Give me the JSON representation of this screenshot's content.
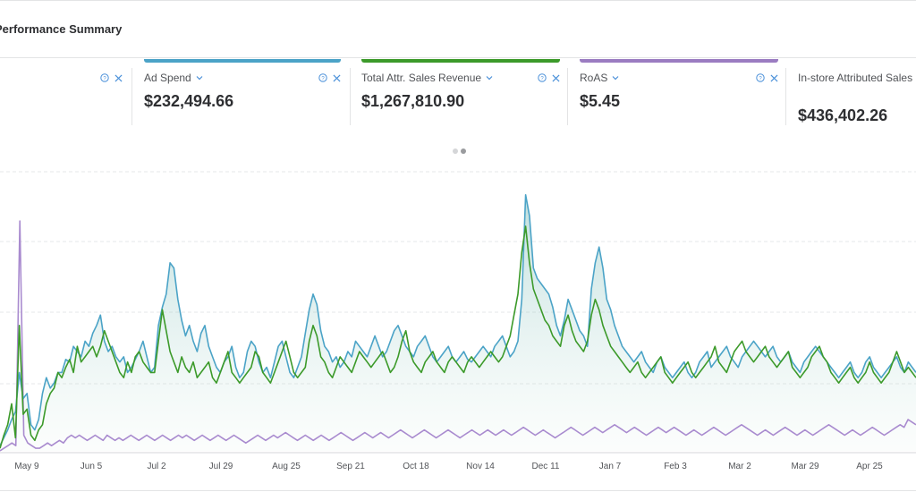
{
  "header": {
    "title": "Performance Summary"
  },
  "cards": [
    {
      "label": "Ad Spend",
      "value": "$232,494.66",
      "color": "#4ba3c7"
    },
    {
      "label": "Total Attr. Sales Revenue",
      "value": "$1,267,810.90",
      "color": "#3c9a2a"
    },
    {
      "label": "RoAS",
      "value": "$5.45",
      "color": "#9b7cc1"
    },
    {
      "label": "In-store Attributed Sales (Beta)",
      "value": "$436,402.26"
    }
  ],
  "pager": {
    "count": 2,
    "active": 1
  },
  "chart_data": {
    "type": "line",
    "x_ticks": [
      "May 9",
      "Jun 5",
      "Jul 2",
      "Jul 29",
      "Aug 25",
      "Sep 21",
      "Oct 18",
      "Nov 14",
      "Dec 11",
      "Jan 7",
      "Feb 3",
      "Mar 2",
      "Mar 29",
      "Apr 25"
    ],
    "grid": true,
    "legend": "none",
    "colors": {
      "blue": "#4ba3c7",
      "green": "#3c9a2a",
      "purple": "#a98bcf",
      "fill": "#e6f3ec"
    },
    "series": [
      {
        "color_key": "blue",
        "values": [
          2,
          5,
          8,
          12,
          15,
          30,
          20,
          22,
          10,
          8,
          12,
          22,
          28,
          24,
          26,
          30,
          30,
          35,
          34,
          40,
          38,
          36,
          42,
          40,
          45,
          48,
          52,
          42,
          38,
          40,
          36,
          34,
          36,
          30,
          32,
          35,
          38,
          42,
          36,
          30,
          32,
          48,
          55,
          60,
          72,
          70,
          58,
          50,
          44,
          48,
          42,
          38,
          45,
          48,
          40,
          36,
          32,
          30,
          34,
          36,
          40,
          32,
          28,
          30,
          38,
          42,
          40,
          34,
          30,
          32,
          28,
          34,
          40,
          42,
          36,
          30,
          28,
          32,
          36,
          45,
          54,
          60,
          56,
          46,
          40,
          38,
          34,
          36,
          32,
          34,
          38,
          36,
          42,
          40,
          38,
          36,
          40,
          44,
          40,
          36,
          38,
          42,
          46,
          48,
          44,
          40,
          38,
          36,
          40,
          42,
          44,
          40,
          36,
          34,
          36,
          38,
          40,
          36,
          34,
          36,
          38,
          35,
          34,
          36,
          38,
          40,
          38,
          36,
          40,
          42,
          44,
          40,
          36,
          38,
          42,
          58,
          98,
          90,
          70,
          66,
          64,
          62,
          60,
          55,
          48,
          44,
          50,
          58,
          54,
          50,
          46,
          44,
          40,
          62,
          72,
          78,
          70,
          58,
          54,
          48,
          44,
          40,
          38,
          36,
          34,
          36,
          38,
          34,
          32,
          30,
          34,
          36,
          32,
          30,
          28,
          30,
          32,
          34,
          30,
          28,
          30,
          34,
          36,
          38,
          32,
          34,
          36,
          38,
          40,
          36,
          34,
          32,
          36,
          38,
          40,
          42,
          40,
          38,
          36,
          38,
          40,
          36,
          34,
          36,
          38,
          34,
          32,
          30,
          34,
          36,
          38,
          40,
          38,
          36,
          34,
          32,
          30,
          28,
          30,
          32,
          34,
          30,
          28,
          30,
          34,
          36,
          32,
          30,
          28,
          30,
          32,
          34,
          36,
          32,
          30,
          34,
          32,
          30
        ]
      },
      {
        "color_key": "green",
        "values": [
          1,
          6,
          10,
          18,
          5,
          48,
          14,
          16,
          6,
          4,
          8,
          10,
          18,
          22,
          24,
          30,
          28,
          32,
          35,
          30,
          40,
          34,
          36,
          38,
          40,
          36,
          40,
          46,
          42,
          38,
          34,
          30,
          28,
          34,
          30,
          36,
          38,
          34,
          32,
          30,
          30,
          42,
          54,
          46,
          38,
          34,
          30,
          36,
          32,
          30,
          34,
          28,
          30,
          32,
          34,
          28,
          26,
          30,
          34,
          38,
          30,
          28,
          26,
          28,
          30,
          32,
          38,
          36,
          30,
          28,
          26,
          30,
          34,
          38,
          42,
          36,
          30,
          28,
          30,
          32,
          42,
          48,
          44,
          36,
          34,
          30,
          28,
          32,
          36,
          34,
          32,
          30,
          34,
          38,
          36,
          34,
          32,
          34,
          36,
          38,
          34,
          30,
          32,
          36,
          42,
          46,
          38,
          34,
          32,
          30,
          34,
          36,
          38,
          34,
          32,
          30,
          34,
          36,
          34,
          32,
          30,
          34,
          36,
          34,
          32,
          34,
          36,
          38,
          36,
          34,
          36,
          40,
          44,
          52,
          60,
          76,
          86,
          72,
          62,
          58,
          54,
          50,
          48,
          44,
          42,
          40,
          48,
          52,
          46,
          42,
          40,
          38,
          42,
          52,
          58,
          54,
          48,
          44,
          40,
          38,
          36,
          34,
          32,
          30,
          32,
          34,
          30,
          28,
          30,
          32,
          34,
          36,
          30,
          28,
          26,
          28,
          30,
          32,
          34,
          30,
          28,
          30,
          32,
          34,
          36,
          40,
          34,
          32,
          30,
          34,
          38,
          40,
          42,
          38,
          36,
          34,
          36,
          38,
          40,
          36,
          34,
          32,
          34,
          36,
          38,
          32,
          30,
          28,
          30,
          32,
          36,
          38,
          40,
          36,
          34,
          30,
          28,
          26,
          28,
          30,
          32,
          28,
          26,
          28,
          30,
          34,
          30,
          28,
          26,
          28,
          30,
          34,
          38,
          34,
          30,
          32,
          30,
          28
        ]
      },
      {
        "color_key": "purple",
        "values": [
          0,
          1,
          2,
          3,
          2,
          88,
          6,
          3,
          2,
          1,
          1,
          2,
          3,
          2,
          3,
          4,
          3,
          5,
          6,
          5,
          6,
          5,
          4,
          5,
          6,
          5,
          4,
          6,
          5,
          4,
          5,
          4,
          5,
          6,
          5,
          4,
          5,
          6,
          5,
          4,
          5,
          6,
          5,
          4,
          5,
          6,
          5,
          6,
          5,
          4,
          5,
          6,
          5,
          4,
          5,
          6,
          5,
          4,
          5,
          6,
          5,
          4,
          3,
          4,
          5,
          6,
          5,
          4,
          5,
          6,
          5,
          6,
          7,
          6,
          5,
          4,
          5,
          6,
          5,
          4,
          5,
          6,
          5,
          4,
          5,
          6,
          7,
          6,
          5,
          4,
          5,
          6,
          7,
          6,
          5,
          6,
          7,
          6,
          5,
          6,
          7,
          8,
          7,
          6,
          5,
          6,
          7,
          8,
          7,
          6,
          5,
          6,
          7,
          8,
          7,
          6,
          5,
          6,
          7,
          8,
          7,
          6,
          7,
          8,
          7,
          6,
          7,
          8,
          7,
          6,
          7,
          8,
          9,
          8,
          7,
          6,
          7,
          8,
          7,
          6,
          5,
          6,
          7,
          8,
          9,
          8,
          7,
          6,
          7,
          8,
          9,
          8,
          7,
          8,
          9,
          10,
          9,
          8,
          7,
          8,
          9,
          8,
          7,
          6,
          7,
          8,
          9,
          8,
          7,
          8,
          9,
          8,
          7,
          6,
          7,
          8,
          7,
          6,
          7,
          8,
          9,
          8,
          7,
          6,
          7,
          8,
          9,
          10,
          9,
          8,
          7,
          6,
          7,
          8,
          7,
          6,
          7,
          8,
          9,
          8,
          7,
          6,
          7,
          8,
          7,
          6,
          7,
          8,
          9,
          10,
          9,
          8,
          7,
          6,
          7,
          8,
          7,
          6,
          7,
          8,
          9,
          8,
          7,
          6,
          7,
          8,
          9,
          10,
          9,
          12,
          11,
          10
        ]
      }
    ],
    "ylim": [
      0,
      100
    ]
  }
}
